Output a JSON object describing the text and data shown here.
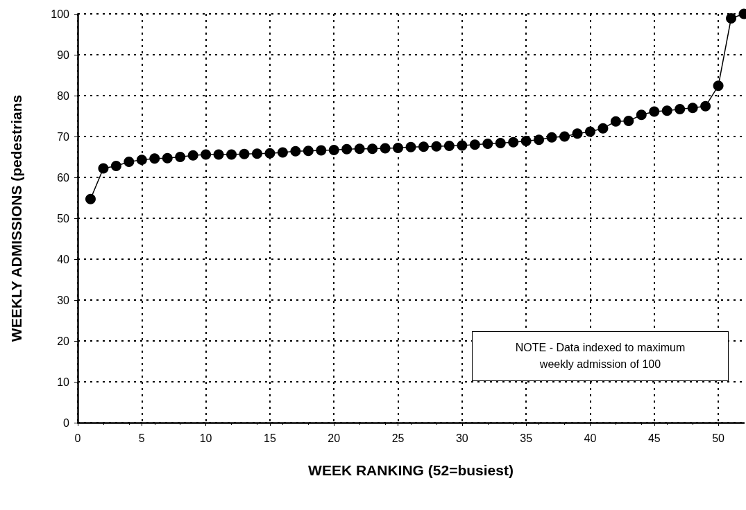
{
  "chart_data": {
    "type": "line",
    "xlabel": "WEEK RANKING (52=busiest)",
    "ylabel": "WEEKLY ADMISSIONS (pedestrians",
    "x": [
      1,
      2,
      3,
      4,
      5,
      6,
      7,
      8,
      9,
      10,
      11,
      12,
      13,
      14,
      15,
      16,
      17,
      18,
      19,
      20,
      21,
      22,
      23,
      24,
      25,
      26,
      27,
      28,
      29,
      30,
      31,
      32,
      33,
      34,
      35,
      36,
      37,
      38,
      39,
      40,
      41,
      42,
      43,
      44,
      45,
      46,
      47,
      48,
      49,
      50,
      51,
      52
    ],
    "series": [
      {
        "color": "#000000",
        "values": [
          54.7,
          62.2,
          62.8,
          63.8,
          64.3,
          64.6,
          64.7,
          65,
          65.4,
          65.6,
          65.6,
          65.6,
          65.7,
          65.8,
          65.9,
          66.1,
          66.4,
          66.5,
          66.6,
          66.7,
          66.9,
          67,
          67,
          67.1,
          67.2,
          67.4,
          67.5,
          67.6,
          67.7,
          67.8,
          68,
          68.2,
          68.4,
          68.6,
          68.9,
          69.2,
          69.8,
          70,
          70.7,
          71.2,
          72,
          73.7,
          73.8,
          75.3,
          76.1,
          76.3,
          76.7,
          77,
          77.4,
          82.4,
          98.9,
          100
        ]
      }
    ],
    "xlim": [
      0,
      52
    ],
    "xticks": [
      0,
      5,
      10,
      15,
      20,
      25,
      30,
      35,
      40,
      45,
      50
    ],
    "ylim": [
      0,
      100
    ],
    "yticks": [
      0,
      10,
      20,
      30,
      40,
      50,
      60,
      70,
      80,
      90,
      100
    ],
    "grid": true,
    "marker": "circle",
    "line_style": "solid",
    "annotations": [
      "NOTE - Data indexed to maximum weekly admission of 100"
    ]
  }
}
